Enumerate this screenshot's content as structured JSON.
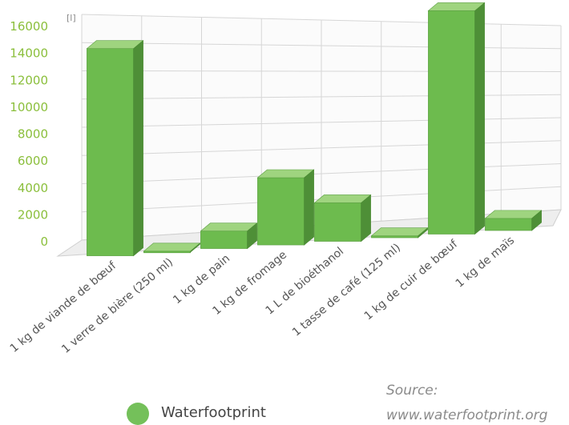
{
  "chart_data": {
    "type": "bar",
    "unit": "[l]",
    "categories": [
      "1 kg de viande de bœuf",
      "1 verre de bière (250 ml)",
      "1 kg de pain",
      "1 kg de fromage",
      "1 L de bioéthanol",
      "1 tasse de café (125 ml)",
      "1 kg de cuir de bœuf",
      "1 kg de maïs"
    ],
    "series": [
      {
        "name": "Waterfootprint",
        "values": [
          15400,
          75,
          1300,
          5000,
          2860,
          140,
          16600,
          900
        ]
      }
    ],
    "y_ticks": [
      "0",
      "2000",
      "4000",
      "6000",
      "8000",
      "10000",
      "12000",
      "14000",
      "16000"
    ],
    "ylim": [
      0,
      16000
    ],
    "grid": true,
    "legend": "bottom-left"
  },
  "colors": {
    "bar_front": "#6dbb4e",
    "bar_top": "#9fd47f",
    "bar_side": "#4e8f37",
    "axis_text": "#8bbf3c"
  },
  "legend": {
    "label": "Waterfootprint"
  },
  "source": {
    "label": "Source:",
    "url": "www.waterfootprint.org"
  }
}
